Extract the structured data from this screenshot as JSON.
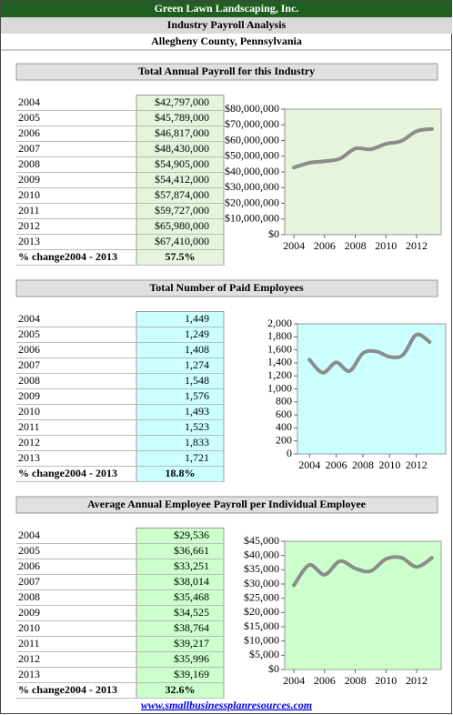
{
  "header": {
    "company": "Green Lawn Landscaping, Inc.",
    "title": "Industry Payroll Analysis",
    "location": "Allegheny County, Pennsylvania"
  },
  "sections": [
    {
      "title": "Total Annual Payroll for this Industry",
      "rows": [
        [
          "2004",
          "$42,797,000"
        ],
        [
          "2005",
          "$45,789,000"
        ],
        [
          "2006",
          "$46,817,000"
        ],
        [
          "2007",
          "$48,430,000"
        ],
        [
          "2008",
          "$54,905,000"
        ],
        [
          "2009",
          "$54,412,000"
        ],
        [
          "2010",
          "$57,874,000"
        ],
        [
          "2011",
          "$59,727,000"
        ],
        [
          "2012",
          "$65,980,000"
        ],
        [
          "2013",
          "$67,410,000"
        ]
      ],
      "change": [
        "% change2004 - 2013",
        "57.5%"
      ]
    },
    {
      "title": "Total Number of Paid Employees",
      "rows": [
        [
          "2004",
          "1,449"
        ],
        [
          "2005",
          "1,249"
        ],
        [
          "2006",
          "1,408"
        ],
        [
          "2007",
          "1,274"
        ],
        [
          "2008",
          "1,548"
        ],
        [
          "2009",
          "1,576"
        ],
        [
          "2010",
          "1,493"
        ],
        [
          "2011",
          "1,523"
        ],
        [
          "2012",
          "1,833"
        ],
        [
          "2013",
          "1,721"
        ]
      ],
      "change": [
        "% change2004 - 2013",
        "18.8%"
      ]
    },
    {
      "title": "Average Annual Employee Payroll per Individual Employee",
      "rows": [
        [
          "2004",
          "$29,536"
        ],
        [
          "2005",
          "$36,661"
        ],
        [
          "2006",
          "$33,251"
        ],
        [
          "2007",
          "$38,014"
        ],
        [
          "2008",
          "$35,468"
        ],
        [
          "2009",
          "$34,525"
        ],
        [
          "2010",
          "$38,764"
        ],
        [
          "2011",
          "$39,217"
        ],
        [
          "2012",
          "$35,996"
        ],
        [
          "2013",
          "$39,169"
        ]
      ],
      "change": [
        "% change2004 - 2013",
        "32.6%"
      ]
    }
  ],
  "chart_data": [
    {
      "type": "line",
      "x": [
        2004,
        2005,
        2006,
        2007,
        2008,
        2009,
        2010,
        2011,
        2012,
        2013
      ],
      "series": [
        {
          "color": "#8c8c8c",
          "values": [
            42797000,
            45789000,
            46817000,
            48430000,
            54905000,
            54412000,
            57874000,
            59727000,
            65980000,
            67410000
          ]
        }
      ],
      "xlim": [
        2003.4,
        2013.6
      ],
      "xticks": [
        2004,
        2006,
        2008,
        2010,
        2012
      ],
      "ylim": [
        0,
        80000000
      ],
      "yticks": [
        {
          "value": 0,
          "label": "$0"
        },
        {
          "value": 10000000,
          "label": "$10,000,000"
        },
        {
          "value": 20000000,
          "label": "$20,000,000"
        },
        {
          "value": 30000000,
          "label": "$30,000,000"
        },
        {
          "value": 40000000,
          "label": "$40,000,000"
        },
        {
          "value": 50000000,
          "label": "$50,000,000"
        },
        {
          "value": 60000000,
          "label": "$60,000,000"
        },
        {
          "value": 70000000,
          "label": "$70,000,000"
        },
        {
          "value": 80000000,
          "label": "$80,000,000"
        }
      ],
      "background": "#e6f4dc"
    },
    {
      "type": "line",
      "x": [
        2004,
        2005,
        2006,
        2007,
        2008,
        2009,
        2010,
        2011,
        2012,
        2013
      ],
      "series": [
        {
          "color": "#8c8c8c",
          "values": [
            1449,
            1249,
            1408,
            1274,
            1548,
            1576,
            1493,
            1523,
            1833,
            1721
          ]
        }
      ],
      "xlim": [
        2003.1,
        2014.2
      ],
      "xticks": [
        2004,
        2006,
        2008,
        2010,
        2012
      ],
      "ylim": [
        0,
        2000
      ],
      "yticks": [
        0,
        200,
        400,
        600,
        800,
        {
          "value": 1000,
          "label": "1,000"
        },
        {
          "value": 1200,
          "label": "1,200"
        },
        {
          "value": 1400,
          "label": "1,400"
        },
        {
          "value": 1600,
          "label": "1,600"
        },
        {
          "value": 1800,
          "label": "1,800"
        },
        {
          "value": 2000,
          "label": "2,000"
        }
      ],
      "background": "#ccffff"
    },
    {
      "type": "line",
      "x": [
        2004,
        2005,
        2006,
        2007,
        2008,
        2009,
        2010,
        2011,
        2012,
        2013
      ],
      "series": [
        {
          "color": "#8c8c8c",
          "values": [
            29536,
            36661,
            33251,
            38014,
            35468,
            34525,
            38764,
            39217,
            35996,
            39169
          ]
        }
      ],
      "xlim": [
        2003.4,
        2013.6
      ],
      "xticks": [
        2004,
        2006,
        2008,
        2010,
        2012
      ],
      "ylim": [
        0,
        45000
      ],
      "yticks": [
        {
          "value": 0,
          "label": "$0"
        },
        {
          "value": 5000,
          "label": "$5,000"
        },
        {
          "value": 10000,
          "label": "$10,000"
        },
        {
          "value": 15000,
          "label": "$15,000"
        },
        {
          "value": 20000,
          "label": "$20,000"
        },
        {
          "value": 25000,
          "label": "$25,000"
        },
        {
          "value": 30000,
          "label": "$30,000"
        },
        {
          "value": 35000,
          "label": "$35,000"
        },
        {
          "value": 40000,
          "label": "$40,000"
        },
        {
          "value": 45000,
          "label": "$45,000"
        }
      ],
      "background": "#ccffcc"
    }
  ],
  "footer": "www.smallbusinessplanresources.com"
}
